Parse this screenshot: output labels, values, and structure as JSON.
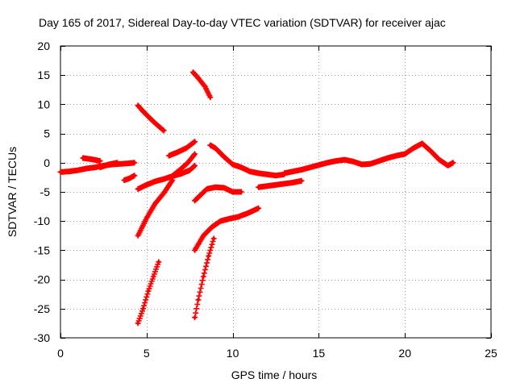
{
  "chart_data": {
    "type": "scatter",
    "title": "Day 165 of 2017, Sidereal Day-to-day VTEC variation (SDTVAR) for receiver ajac",
    "xlabel": "GPS time / hours",
    "ylabel": "SDTVAR / TECUs",
    "xlim": [
      0,
      25
    ],
    "ylim": [
      -30,
      20
    ],
    "x_ticks": [
      0,
      5,
      10,
      15,
      20,
      25
    ],
    "y_ticks": [
      -30,
      -25,
      -20,
      -15,
      -10,
      -5,
      0,
      5,
      10,
      15,
      20
    ],
    "x_tick_labels": [
      "0",
      "5",
      "10",
      "15",
      "20",
      "25"
    ],
    "y_tick_labels": [
      "-30",
      "-25",
      "-20",
      "-15",
      "-10",
      "-5",
      "0",
      "5",
      "10",
      "15",
      "20"
    ],
    "grid": true,
    "marker": "plus",
    "color": "#ff0000",
    "series": [
      {
        "name": "s1",
        "x": [
          0.0,
          0.5,
          1.0,
          1.5,
          2.0,
          2.5,
          3.0,
          3.5,
          4.0,
          4.3
        ],
        "y": [
          -1.6,
          -1.5,
          -1.3,
          -1.0,
          -0.8,
          -0.5,
          -0.3,
          -0.2,
          -0.1,
          0.0
        ]
      },
      {
        "name": "s2",
        "x": [
          1.3,
          1.8,
          2.3
        ],
        "y": [
          0.8,
          0.6,
          0.3
        ]
      },
      {
        "name": "s3",
        "x": [
          2.3,
          2.8,
          3.3
        ],
        "y": [
          -0.8,
          -0.3,
          0.0
        ]
      },
      {
        "name": "s4",
        "x": [
          3.7,
          4.0,
          4.3
        ],
        "y": [
          -3.0,
          -2.7,
          -2.2
        ]
      },
      {
        "name": "s5",
        "x": [
          4.5,
          5.0,
          5.5,
          6.0,
          6.5,
          7.0,
          7.5,
          7.8
        ],
        "y": [
          -4.5,
          -3.8,
          -3.2,
          -2.8,
          -2.3,
          -1.9,
          -1.3,
          -0.5
        ]
      },
      {
        "name": "s6",
        "x": [
          4.5,
          4.8,
          5.2,
          5.6,
          6.0
        ],
        "y": [
          9.8,
          8.8,
          7.6,
          6.5,
          5.5
        ]
      },
      {
        "name": "s7",
        "x": [
          4.5,
          5.0,
          5.5,
          6.0,
          6.5
        ],
        "y": [
          -12.5,
          -9.5,
          -7.0,
          -5.2,
          -3.0
        ]
      },
      {
        "name": "s8",
        "x": [
          4.5,
          4.8,
          5.1,
          5.4,
          5.7
        ],
        "y": [
          -27.5,
          -25.0,
          -22.0,
          -19.5,
          -17.0
        ]
      },
      {
        "name": "s9",
        "x": [
          6.3,
          6.8,
          7.3,
          7.8
        ],
        "y": [
          1.2,
          1.8,
          2.5,
          3.6
        ]
      },
      {
        "name": "s10",
        "x": [
          6.4,
          6.9,
          7.4,
          7.8
        ],
        "y": [
          -2.5,
          -1.3,
          0.0,
          1.5
        ]
      },
      {
        "name": "s11",
        "x": [
          7.7,
          8.0,
          8.4,
          8.7
        ],
        "y": [
          15.5,
          14.5,
          13.0,
          11.2
        ]
      },
      {
        "name": "s12",
        "x": [
          7.8,
          8.5,
          9.0,
          9.5,
          10.0,
          10.5
        ],
        "y": [
          -6.5,
          -4.5,
          -4.2,
          -4.3,
          -5.0,
          -5.0
        ]
      },
      {
        "name": "s13",
        "x": [
          7.8,
          8.3,
          8.8,
          9.3,
          9.8,
          10.3,
          11.0,
          11.5
        ],
        "y": [
          -15.0,
          -12.5,
          -11.0,
          -10.0,
          -9.6,
          -9.3,
          -8.5,
          -7.8
        ]
      },
      {
        "name": "s14",
        "x": [
          7.8,
          8.0,
          8.3,
          8.6,
          8.9
        ],
        "y": [
          -26.5,
          -23.5,
          -19.5,
          -16.0,
          -13.0
        ]
      },
      {
        "name": "s15",
        "x": [
          8.7,
          9.0,
          9.5,
          10.0,
          10.5,
          11.0,
          11.5,
          12.0,
          12.5,
          13.0
        ],
        "y": [
          3.0,
          2.5,
          1.0,
          -0.3,
          -0.8,
          -1.5,
          -1.8,
          -2.0,
          -2.2,
          -2.0
        ]
      },
      {
        "name": "s16",
        "x": [
          11.5,
          12.0,
          12.5,
          13.0,
          13.5,
          14.0
        ],
        "y": [
          -4.2,
          -4.0,
          -3.8,
          -3.6,
          -3.4,
          -3.1
        ]
      },
      {
        "name": "s17",
        "x": [
          13.0,
          13.5,
          14.0,
          14.5,
          15.0,
          15.5,
          16.0,
          16.5,
          17.0,
          17.5,
          18.0,
          18.5,
          19.0,
          19.5,
          20.0,
          20.5,
          21.0,
          21.5,
          22.0,
          22.5,
          22.8
        ],
        "y": [
          -1.8,
          -1.5,
          -1.2,
          -0.8,
          -0.4,
          0.0,
          0.3,
          0.5,
          0.2,
          -0.3,
          -0.2,
          0.3,
          0.8,
          1.2,
          1.5,
          2.5,
          3.3,
          2.0,
          0.5,
          -0.5,
          0.0
        ]
      }
    ]
  }
}
